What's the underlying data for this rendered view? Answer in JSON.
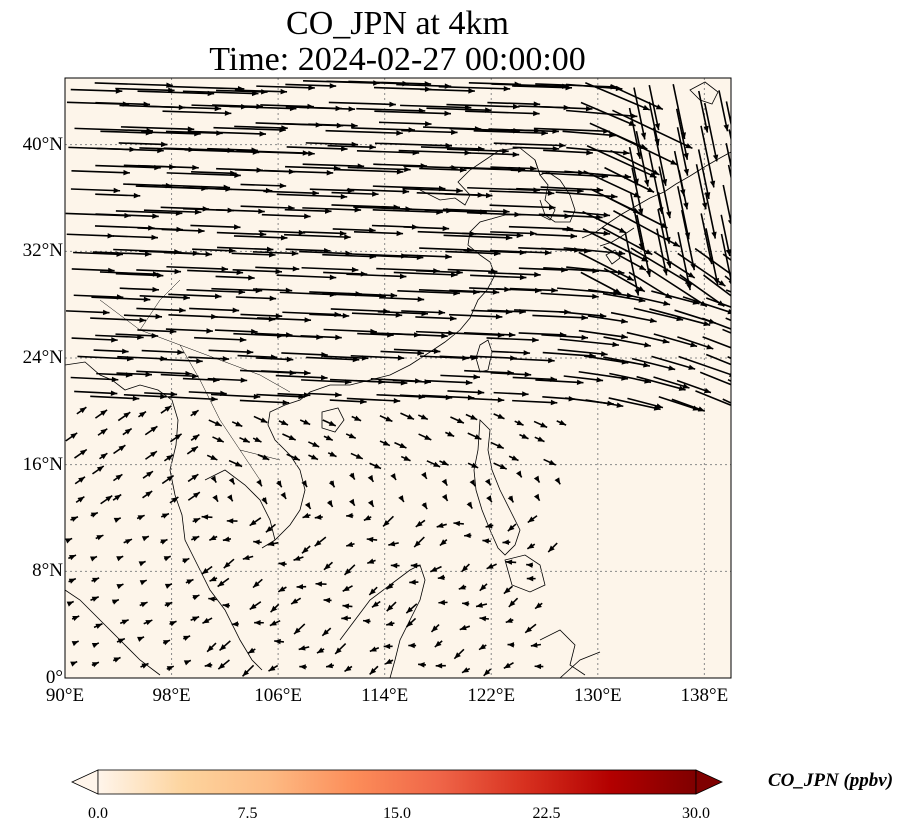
{
  "title": {
    "line1": "CO_JPN at 4km",
    "line2": "Time: 2024-02-27 00:00:00"
  },
  "map": {
    "lon_range": [
      90,
      140
    ],
    "lat_range": [
      0,
      45
    ],
    "background_color": "#fdf5ea",
    "gridline_color": "#8a8a8a",
    "coastline_color": "#000000",
    "lat_ticks": [
      {
        "value": 0,
        "label": "0°"
      },
      {
        "value": 8,
        "label": "8°N"
      },
      {
        "value": 16,
        "label": "16°N"
      },
      {
        "value": 24,
        "label": "24°N"
      },
      {
        "value": 32,
        "label": "32°N"
      },
      {
        "value": 40,
        "label": "40°N"
      }
    ],
    "lon_ticks": [
      {
        "value": 90,
        "label": "90°E"
      },
      {
        "value": 98,
        "label": "98°E"
      },
      {
        "value": 106,
        "label": "106°E"
      },
      {
        "value": 114,
        "label": "114°E"
      },
      {
        "value": 122,
        "label": "122°E"
      },
      {
        "value": 130,
        "label": "130°E"
      },
      {
        "value": 138,
        "label": "138°E"
      }
    ]
  },
  "wind_field": {
    "description": "wind vectors",
    "arrow_color": "#000000"
  },
  "colorbar": {
    "label": "CO_JPN (ppbv)",
    "min": 0.0,
    "max": 30.0,
    "extend": "both",
    "ticks": [
      "0.0",
      "7.5",
      "15.0",
      "22.5",
      "30.0"
    ],
    "colors": [
      "#fff5eb",
      "#fdd49e",
      "#fdbb84",
      "#fc8d59",
      "#ef6548",
      "#d7301f",
      "#b30000",
      "#7f0000"
    ]
  }
}
